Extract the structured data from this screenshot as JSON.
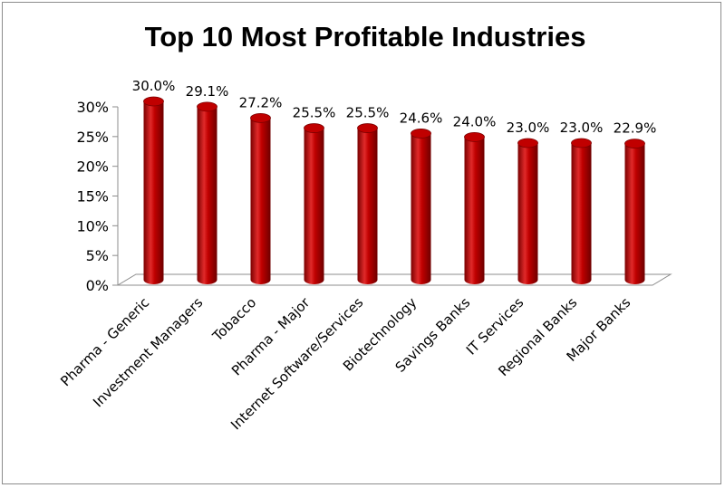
{
  "chart_data": {
    "type": "bar",
    "title": "Top 10 Most Profitable Industries",
    "xlabel": "",
    "ylabel": "",
    "ylim": [
      0,
      30
    ],
    "yticks": [
      "0%",
      "5%",
      "10%",
      "15%",
      "20%",
      "25%",
      "30%"
    ],
    "categories": [
      "Pharma - Generic",
      "Investment Managers",
      "Tobacco",
      "Pharma - Major",
      "Internet Software/Services",
      "Biotechnology",
      "Savings Banks",
      "IT Services",
      "Regional Banks",
      "Major Banks"
    ],
    "values": [
      30.0,
      29.1,
      27.2,
      25.5,
      25.5,
      24.6,
      24.0,
      23.0,
      23.0,
      22.9
    ],
    "data_labels": [
      "30.0%",
      "29.1%",
      "27.2%",
      "25.5%",
      "25.5%",
      "24.6%",
      "24.0%",
      "23.0%",
      "23.0%",
      "22.9%"
    ],
    "grid": false,
    "legend": "none",
    "bar_style": "3d-cylinder",
    "colors": {
      "bar": "#c00000",
      "bar_dark": "#7a0000",
      "bar_light": "#e63a3a",
      "axis": "#8c8c8c",
      "floor": "#ffffff"
    }
  }
}
